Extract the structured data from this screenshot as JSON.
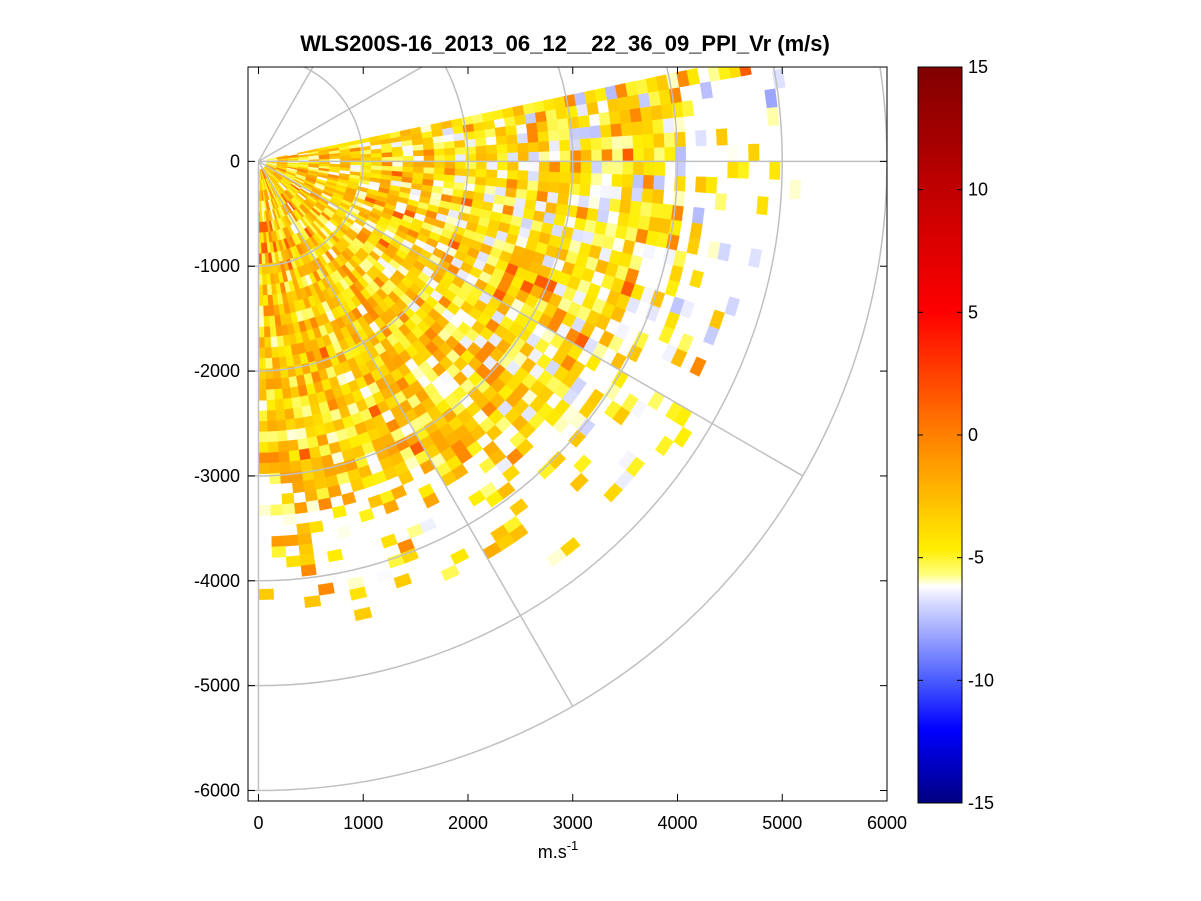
{
  "chart_data": {
    "type": "heatmap",
    "title": "WLS200S-16_2013_06_12__22_36_09_PPI_Vr (m/s)",
    "xlabel": "m.s",
    "xlabel_sup": "-1",
    "ylabel": "",
    "xlim": [
      -100,
      6000
    ],
    "ylim": [
      -6100,
      900
    ],
    "xticks": [
      0,
      1000,
      2000,
      3000,
      4000,
      5000,
      6000
    ],
    "yticks": [
      0,
      -1000,
      -2000,
      -3000,
      -4000,
      -5000,
      -6000
    ],
    "xtick_labels": [
      "0",
      "1000",
      "2000",
      "3000",
      "4000",
      "5000",
      "6000"
    ],
    "ytick_labels": [
      "0",
      "-1000",
      "-2000",
      "-3000",
      "-4000",
      "-5000",
      "-6000"
    ],
    "polar_grid": {
      "origin": [
        0,
        0
      ],
      "range_rings": [
        1000,
        2000,
        3000,
        4000,
        5000,
        6000
      ],
      "spoke_angles_deg": [
        60,
        30,
        0,
        -30,
        -60,
        -90
      ],
      "spoke_length": 6000,
      "color": "#c0c0c0"
    },
    "scan": {
      "azimuth_range_deg": [
        -90,
        12
      ],
      "radial_range_m": [
        0,
        6000
      ],
      "dominant_velocity_m_s": [
        -6,
        -1
      ]
    },
    "colorbar": {
      "min": -15,
      "max": 15,
      "ticks": [
        15,
        10,
        5,
        0,
        -5,
        -10,
        -15
      ],
      "tick_labels": [
        "15",
        "10",
        "5",
        "0",
        "-5",
        "-10",
        "-15"
      ],
      "colors": {
        "top": "#800000",
        "red": "#ff0000",
        "orange": "#ff8000",
        "yellow": "#ffff00",
        "white": "#ffffff",
        "blue": "#0000ff",
        "bottom": "#000080"
      }
    },
    "colors": {
      "frame": "#000000",
      "background": "#ffffff"
    }
  }
}
